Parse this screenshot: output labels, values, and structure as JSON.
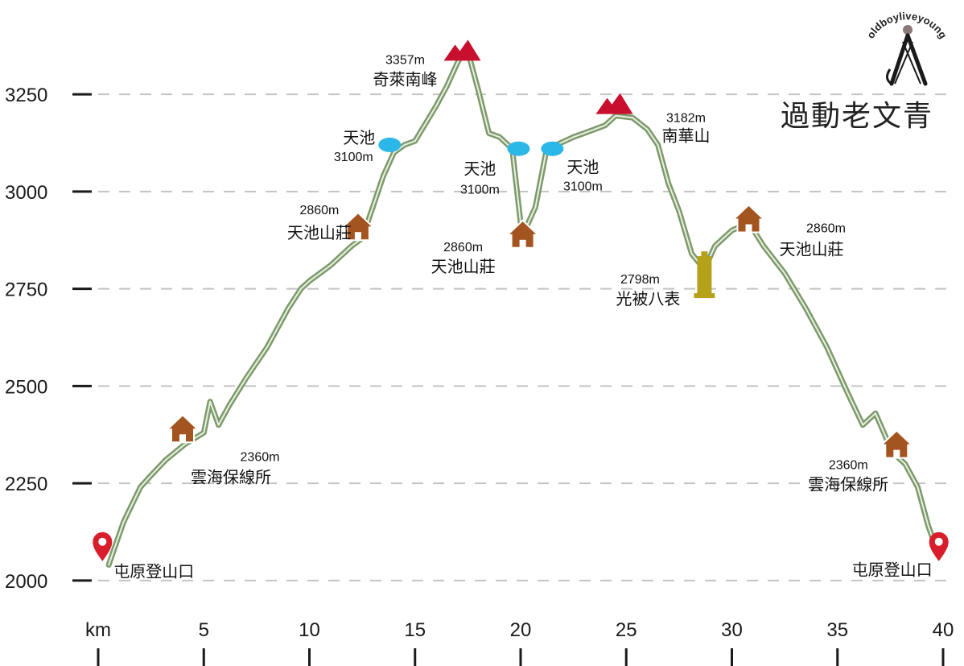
{
  "chart_data": {
    "type": "line",
    "xlabel": "km",
    "xlim": [
      0,
      40
    ],
    "ylim": [
      1950,
      3420
    ],
    "x_ticks": [
      {
        "value": 0,
        "label": "km"
      },
      {
        "value": 5,
        "label": "5"
      },
      {
        "value": 10,
        "label": "10"
      },
      {
        "value": 15,
        "label": "15"
      },
      {
        "value": 20,
        "label": "20"
      },
      {
        "value": 25,
        "label": "25"
      },
      {
        "value": 30,
        "label": "30"
      },
      {
        "value": 35,
        "label": "35"
      },
      {
        "value": 40,
        "label": "40"
      }
    ],
    "y_ticks": [
      2000,
      2250,
      2500,
      2750,
      3000,
      3250
    ],
    "grid": "horizontal dashed",
    "line_color": "#7d9a6c",
    "profile": {
      "x": [
        0.5,
        1.2,
        2,
        2.5,
        3.2,
        4.1,
        5,
        5.3,
        5.7,
        6.2,
        7,
        8,
        9,
        9.6,
        10,
        11,
        12,
        12.5,
        13,
        13.5,
        14,
        14.5,
        15,
        16,
        16.5,
        17,
        17.3,
        17.6,
        18,
        18.5,
        19,
        19.6,
        20,
        20.2,
        20.7,
        21.2,
        21.7,
        22.5,
        23,
        24,
        24.5,
        25.3,
        26,
        26.5,
        27,
        27.5,
        28.1,
        28.7,
        29.2,
        30,
        30.8,
        31.5,
        32.5,
        33.5,
        34.5,
        35.5,
        36.2,
        36.8,
        37.2,
        37.6,
        38.2,
        38.8,
        39.3,
        39.7
      ],
      "y": [
        2040,
        2150,
        2240,
        2270,
        2310,
        2350,
        2380,
        2460,
        2400,
        2450,
        2520,
        2600,
        2700,
        2750,
        2770,
        2810,
        2860,
        2880,
        2960,
        3040,
        3100,
        3120,
        3130,
        3220,
        3270,
        3330,
        3360,
        3340,
        3260,
        3150,
        3140,
        3110,
        2920,
        2900,
        2960,
        3100,
        3120,
        3140,
        3150,
        3170,
        3195,
        3190,
        3160,
        3120,
        3020,
        2950,
        2840,
        2800,
        2860,
        2900,
        2920,
        2860,
        2790,
        2700,
        2600,
        2480,
        2400,
        2430,
        2380,
        2330,
        2300,
        2240,
        2140,
        2080
      ]
    },
    "landmarks": [
      {
        "km": 0.2,
        "elev": 2050,
        "label": "屯原登山口",
        "elev_label": "",
        "icon": "pin-icon",
        "color": "#d91e2b"
      },
      {
        "km": 4,
        "elev": 2380,
        "label": "雲海保線所",
        "elev_label": "2360m",
        "icon": "cabin-icon",
        "color": "#a4541f"
      },
      {
        "km": 12.3,
        "elev": 2900,
        "label": "天池山莊",
        "elev_label": "2860m",
        "icon": "cabin-icon",
        "color": "#a4541f"
      },
      {
        "km": 13.8,
        "elev": 3120,
        "label": "天池",
        "elev_label": "3100m",
        "icon": "lake-icon",
        "color": "#2bb7e8"
      },
      {
        "km": 17.2,
        "elev": 3357,
        "label": "奇萊南峰",
        "elev_label": "3357m",
        "icon": "peak-icon",
        "color": "#c8102e"
      },
      {
        "km": 19.9,
        "elev": 3110,
        "label": "天池",
        "elev_label": "3100m",
        "icon": "lake-icon",
        "color": "#2bb7e8"
      },
      {
        "km": 20.1,
        "elev": 2880,
        "label": "天池山莊",
        "elev_label": "2860m",
        "icon": "cabin-icon",
        "color": "#a4541f"
      },
      {
        "km": 21.5,
        "elev": 3110,
        "label": "天池",
        "elev_label": "3100m",
        "icon": "lake-icon",
        "color": "#2bb7e8"
      },
      {
        "km": 24.4,
        "elev": 3220,
        "label": "南華山",
        "elev_label": "3182m",
        "icon": "peak-icon",
        "color": "#c8102e"
      },
      {
        "km": 28.7,
        "elev": 2780,
        "label": "光被八表",
        "elev_label": "2798m",
        "icon": "monument-icon",
        "color": "#b5a21a"
      },
      {
        "km": 30.8,
        "elev": 2920,
        "label": "天池山莊",
        "elev_label": "2860m",
        "icon": "cabin-icon",
        "color": "#a4541f"
      },
      {
        "km": 37.8,
        "elev": 2340,
        "label": "雲海保線所",
        "elev_label": "2360m",
        "icon": "cabin-icon",
        "color": "#a4541f"
      },
      {
        "km": 39.8,
        "elev": 2050,
        "label": "屯原登山口",
        "elev_label": "",
        "icon": "pin-icon",
        "color": "#d91e2b"
      }
    ]
  },
  "brand": {
    "arc_text": "oldboyliveyoung",
    "title": "過動老文青",
    "icon": "person-icon"
  }
}
